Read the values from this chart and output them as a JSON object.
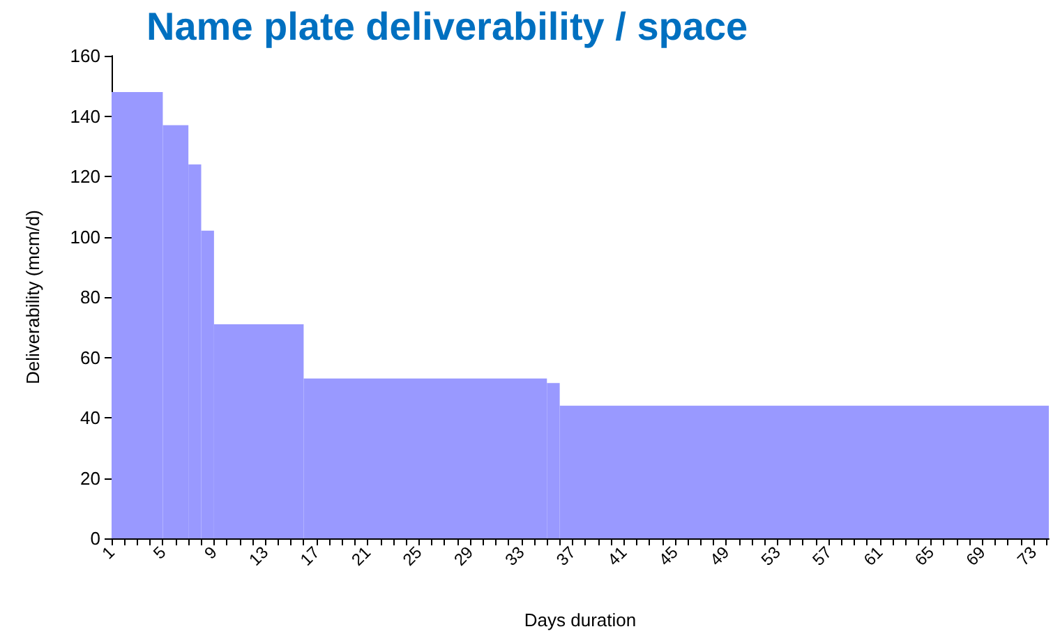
{
  "chart_data": {
    "type": "histogram",
    "title": "Name plate deliverability / space",
    "xlabel": "Days duration",
    "ylabel": "Deliverability (mcm/d)",
    "bins": [
      1,
      5,
      7,
      8,
      9,
      16,
      35,
      36,
      74.2
    ],
    "values": [
      148,
      137,
      124,
      102,
      71,
      53,
      51.5,
      44
    ],
    "color": "#9999ff",
    "xlim": [
      1,
      74.2
    ],
    "xticks": [
      1,
      {
        "value": 2,
        "label": null
      },
      {
        "value": 3,
        "label": null
      },
      {
        "value": 4,
        "label": null
      },
      5,
      {
        "value": 6,
        "label": null
      },
      {
        "value": 7,
        "label": null
      },
      {
        "value": 8,
        "label": null
      },
      9,
      {
        "value": 10,
        "label": null
      },
      {
        "value": 11,
        "label": null
      },
      {
        "value": 12,
        "label": null
      },
      13,
      {
        "value": 14,
        "label": null
      },
      {
        "value": 15,
        "label": null
      },
      {
        "value": 16,
        "label": null
      },
      17,
      {
        "value": 18,
        "label": null
      },
      {
        "value": 19,
        "label": null
      },
      {
        "value": 20,
        "label": null
      },
      21,
      {
        "value": 22,
        "label": null
      },
      {
        "value": 23,
        "label": null
      },
      {
        "value": 24,
        "label": null
      },
      25,
      {
        "value": 26,
        "label": null
      },
      {
        "value": 27,
        "label": null
      },
      {
        "value": 28,
        "label": null
      },
      29,
      {
        "value": 30,
        "label": null
      },
      {
        "value": 31,
        "label": null
      },
      {
        "value": 32,
        "label": null
      },
      33,
      {
        "value": 34,
        "label": null
      },
      {
        "value": 35,
        "label": null
      },
      {
        "value": 36,
        "label": null
      },
      37,
      {
        "value": 38,
        "label": null
      },
      {
        "value": 39,
        "label": null
      },
      {
        "value": 40,
        "label": null
      },
      41,
      {
        "value": 42,
        "label": null
      },
      {
        "value": 43,
        "label": null
      },
      {
        "value": 44,
        "label": null
      },
      45,
      {
        "value": 46,
        "label": null
      },
      {
        "value": 47,
        "label": null
      },
      {
        "value": 48,
        "label": null
      },
      49,
      {
        "value": 50,
        "label": null
      },
      {
        "value": 51,
        "label": null
      },
      {
        "value": 52,
        "label": null
      },
      53,
      {
        "value": 54,
        "label": null
      },
      {
        "value": 55,
        "label": null
      },
      {
        "value": 56,
        "label": null
      },
      57,
      {
        "value": 58,
        "label": null
      },
      {
        "value": 59,
        "label": null
      },
      {
        "value": 60,
        "label": null
      },
      61,
      {
        "value": 62,
        "label": null
      },
      {
        "value": 63,
        "label": null
      },
      {
        "value": 64,
        "label": null
      },
      65,
      {
        "value": 66,
        "label": null
      },
      {
        "value": 67,
        "label": null
      },
      {
        "value": 68,
        "label": null
      },
      69,
      {
        "value": 70,
        "label": null
      },
      {
        "value": 71,
        "label": null
      },
      {
        "value": 72,
        "label": null
      },
      73,
      {
        "value": 74,
        "label": null
      }
    ],
    "ylim": [
      0,
      160
    ],
    "yticks": [
      0,
      20,
      40,
      60,
      80,
      100,
      120,
      140,
      160
    ],
    "grid": false
  }
}
